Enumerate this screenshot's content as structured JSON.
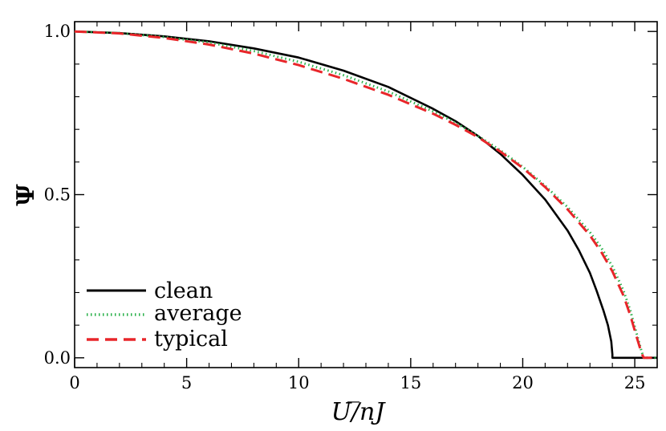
{
  "chart_data": {
    "type": "line",
    "title": "",
    "xlabel": "U/̅nJ",
    "ylabel": "Ψ",
    "xlim": [
      0,
      26
    ],
    "ylim": [
      -0.03,
      1.03
    ],
    "x_ticks": [
      0,
      5,
      10,
      15,
      20,
      25
    ],
    "y_ticks": [
      0.0,
      0.5,
      1.0
    ],
    "x_tick_labels": [
      "0",
      "5",
      "10",
      "15",
      "20",
      "25"
    ],
    "y_tick_labels": [
      "0.0",
      "0.5",
      "1.0"
    ],
    "grid": false,
    "legend_position": "bottom-left",
    "series": [
      {
        "name": "clean",
        "color": "#000000",
        "style": "solid",
        "x": [
          0,
          2,
          4,
          6,
          8,
          10,
          12,
          14,
          16,
          17,
          18,
          19,
          20,
          21,
          22,
          22.5,
          23,
          23.3,
          23.6,
          23.8,
          23.95,
          24.0,
          24.0,
          26
        ],
        "y": [
          1.0,
          0.995,
          0.985,
          0.97,
          0.948,
          0.92,
          0.88,
          0.83,
          0.763,
          0.725,
          0.68,
          0.625,
          0.56,
          0.485,
          0.39,
          0.33,
          0.26,
          0.205,
          0.145,
          0.1,
          0.05,
          0.01,
          0.0,
          0.0
        ]
      },
      {
        "name": "average",
        "color": "#2bb14b",
        "style": "dotted",
        "x": [
          0,
          2,
          4,
          6,
          8,
          10,
          12,
          14,
          16,
          17,
          18,
          19,
          20,
          21,
          22,
          23,
          23.5,
          24,
          24.5,
          24.8,
          25.1,
          25.3,
          25.4,
          26
        ],
        "y": [
          1.0,
          0.995,
          0.983,
          0.966,
          0.94,
          0.907,
          0.866,
          0.816,
          0.755,
          0.72,
          0.68,
          0.636,
          0.585,
          0.527,
          0.462,
          0.385,
          0.338,
          0.28,
          0.205,
          0.145,
          0.07,
          0.02,
          0.0,
          0.0
        ]
      },
      {
        "name": "typical",
        "color": "#e8262a",
        "style": "dashed",
        "x": [
          0,
          2,
          4,
          6,
          8,
          10,
          12,
          14,
          16,
          17,
          18,
          19,
          20,
          21,
          22,
          23,
          23.5,
          24,
          24.5,
          24.8,
          25.1,
          25.3,
          25.4,
          26
        ],
        "y": [
          1.0,
          0.994,
          0.98,
          0.96,
          0.932,
          0.897,
          0.855,
          0.806,
          0.748,
          0.714,
          0.676,
          0.632,
          0.582,
          0.523,
          0.455,
          0.375,
          0.325,
          0.265,
          0.19,
          0.13,
          0.06,
          0.015,
          0.0,
          0.0
        ]
      }
    ]
  }
}
